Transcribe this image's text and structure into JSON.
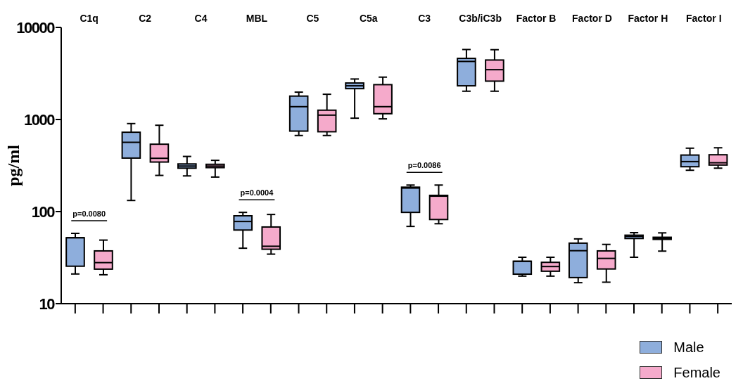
{
  "chart_data": {
    "type": "box",
    "ylabel": "pg/ml",
    "log": true,
    "ylim": [
      10,
      10000
    ],
    "yticks": [
      10,
      100,
      1000,
      10000
    ],
    "legend": "bottom right",
    "categories": [
      "C1q",
      "C2",
      "C4",
      "MBL",
      "C5",
      "C5a",
      "C3",
      "C3b/iC3b",
      "Factor B",
      "Factor D",
      "Factor H",
      "Factor I"
    ],
    "series": [
      {
        "name": "Male",
        "color": "#8eaedc",
        "boxes": [
          {
            "low": 21,
            "q1": 25.5,
            "median": 52,
            "q3": 52,
            "high": 58
          },
          {
            "low": 132,
            "q1": 381,
            "median": 565,
            "q3": 727,
            "high": 903
          },
          {
            "low": 244,
            "q1": 296,
            "median": 312,
            "q3": 329,
            "high": 397
          },
          {
            "low": 40,
            "q1": 63,
            "median": 78,
            "q3": 90,
            "high": 98
          },
          {
            "low": 670,
            "q1": 748,
            "median": 1378,
            "q3": 1795,
            "high": 1982
          },
          {
            "low": 1033,
            "q1": 2163,
            "median": 2322,
            "q3": 2490,
            "high": 2752
          },
          {
            "low": 69,
            "q1": 98,
            "median": 180,
            "q3": 184,
            "high": 194
          },
          {
            "low": 2028,
            "q1": 2322,
            "median": 4270,
            "q3": 4611,
            "high": 5754
          },
          {
            "low": 19.9,
            "q1": 20.9,
            "median": 28.8,
            "q3": 28.9,
            "high": 31.9
          },
          {
            "low": 16.9,
            "q1": 19.2,
            "median": 37.6,
            "q3": 45.4,
            "high": 50.5
          },
          {
            "low": 31.9,
            "q1": 51,
            "median": 53.8,
            "q3": 55.4,
            "high": 59
          },
          {
            "low": 281,
            "q1": 307,
            "median": 349,
            "q3": 411,
            "high": 488
          }
        ]
      },
      {
        "name": "Female",
        "color": "#f5aacb",
        "boxes": [
          {
            "low": 20.6,
            "q1": 23.7,
            "median": 27.9,
            "q3": 37.4,
            "high": 49
          },
          {
            "low": 247,
            "q1": 345,
            "median": 379,
            "q3": 539,
            "high": 866
          },
          {
            "low": 237,
            "q1": 300,
            "median": 312,
            "q3": 326,
            "high": 360
          },
          {
            "low": 34.5,
            "q1": 39,
            "median": 42,
            "q3": 68,
            "high": 93
          },
          {
            "low": 670,
            "q1": 736,
            "median": 1115,
            "q3": 1262,
            "high": 1879
          },
          {
            "low": 1016,
            "q1": 1156,
            "median": 1378,
            "q3": 2390,
            "high": 2884
          },
          {
            "low": 73.8,
            "q1": 82,
            "median": 147,
            "q3": 150,
            "high": 194
          },
          {
            "low": 2028,
            "q1": 2610,
            "median": 3475,
            "q3": 4424,
            "high": 5728
          },
          {
            "low": 19.9,
            "q1": 22.5,
            "median": 25.3,
            "q3": 28.1,
            "high": 31.9
          },
          {
            "low": 17.1,
            "q1": 23.8,
            "median": 31,
            "q3": 37.4,
            "high": 44
          },
          {
            "low": 37.2,
            "q1": 49.9,
            "median": 51.3,
            "q3": 52.6,
            "high": 58.7
          },
          {
            "low": 296,
            "q1": 320,
            "median": 339,
            "q3": 414,
            "high": 493
          }
        ]
      }
    ],
    "annotations": [
      "p=0.0080",
      "p=0.0004",
      "p=0.0086"
    ]
  }
}
